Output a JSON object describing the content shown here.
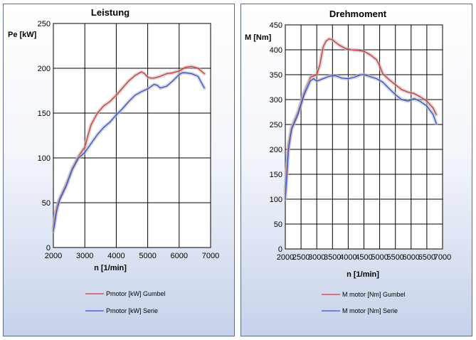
{
  "chart_data": [
    {
      "type": "line",
      "title": "Leistung",
      "xlabel": "n [1/min]",
      "ylabel": "Pe [kW]",
      "xlim": [
        2000,
        7000
      ],
      "ylim": [
        0,
        250
      ],
      "xticks": [
        "2000",
        "3000",
        "4000",
        "5000",
        "6000",
        "7000"
      ],
      "yticks": [
        "0",
        "50",
        "100",
        "150",
        "200",
        "250"
      ],
      "grid": true,
      "legend_position": "bottom",
      "series": [
        {
          "name": "Pmotor [kW] Gumbel",
          "color": "#e03030",
          "x": [
            2000,
            2100,
            2200,
            2400,
            2600,
            2800,
            3000,
            3100,
            3200,
            3400,
            3600,
            3800,
            4000,
            4200,
            4400,
            4600,
            4800,
            4900,
            5000,
            5100,
            5200,
            5400,
            5600,
            5800,
            6000,
            6200,
            6400,
            6600,
            6800
          ],
          "y": [
            22,
            45,
            55,
            70,
            88,
            102,
            112,
            125,
            137,
            150,
            158,
            163,
            170,
            178,
            186,
            192,
            196,
            194,
            190,
            189,
            189,
            191,
            194,
            195,
            197,
            201,
            202,
            200,
            194
          ]
        },
        {
          "name": "Pmotor [kW] Serie",
          "color": "#3050e0",
          "x": [
            2000,
            2100,
            2200,
            2400,
            2600,
            2800,
            3000,
            3200,
            3400,
            3600,
            3800,
            4000,
            4200,
            4400,
            4600,
            4800,
            5000,
            5200,
            5300,
            5400,
            5600,
            5800,
            6000,
            6100,
            6200,
            6400,
            6600,
            6800
          ],
          "y": [
            18,
            40,
            53,
            68,
            87,
            100,
            106,
            116,
            126,
            134,
            140,
            148,
            155,
            163,
            170,
            174,
            177,
            182,
            181,
            178,
            180,
            186,
            193,
            195,
            195,
            194,
            191,
            178
          ]
        }
      ]
    },
    {
      "type": "line",
      "title": "Drehmoment",
      "xlabel": "n [1/min]",
      "ylabel": "M [Nm]",
      "xlim": [
        2000,
        7000
      ],
      "ylim": [
        0,
        450
      ],
      "xticks": [
        "2000",
        "2500",
        "3000",
        "3500",
        "4000",
        "4500",
        "5000",
        "5500",
        "6000",
        "6500",
        "7000"
      ],
      "yticks": [
        "0",
        "50",
        "100",
        "150",
        "200",
        "250",
        "300",
        "350",
        "400",
        "450"
      ],
      "grid": true,
      "legend_position": "bottom",
      "series": [
        {
          "name": "M motor [Nm] Gumbel",
          "color": "#e03030",
          "x": [
            2000,
            2100,
            2200,
            2400,
            2600,
            2800,
            3000,
            3100,
            3200,
            3300,
            3400,
            3500,
            3700,
            3900,
            4100,
            4300,
            4500,
            4700,
            4900,
            5000,
            5100,
            5300,
            5500,
            5700,
            5900,
            6100,
            6300,
            6500,
            6700,
            6800
          ],
          "y": [
            115,
            210,
            245,
            275,
            315,
            345,
            350,
            370,
            405,
            418,
            422,
            420,
            410,
            403,
            400,
            399,
            397,
            390,
            380,
            368,
            352,
            340,
            330,
            320,
            315,
            312,
            305,
            297,
            283,
            270
          ]
        },
        {
          "name": "M motor [Nm] Serie",
          "color": "#3050e0",
          "x": [
            2000,
            2100,
            2200,
            2400,
            2600,
            2800,
            2900,
            3000,
            3200,
            3400,
            3600,
            3800,
            4000,
            4200,
            4400,
            4500,
            4700,
            4900,
            5100,
            5300,
            5500,
            5700,
            5900,
            6100,
            6300,
            6500,
            6700,
            6800
          ],
          "y": [
            100,
            200,
            240,
            270,
            310,
            338,
            342,
            337,
            342,
            347,
            348,
            343,
            342,
            345,
            350,
            350,
            346,
            342,
            335,
            322,
            310,
            300,
            297,
            302,
            296,
            287,
            270,
            252
          ]
        }
      ]
    }
  ]
}
